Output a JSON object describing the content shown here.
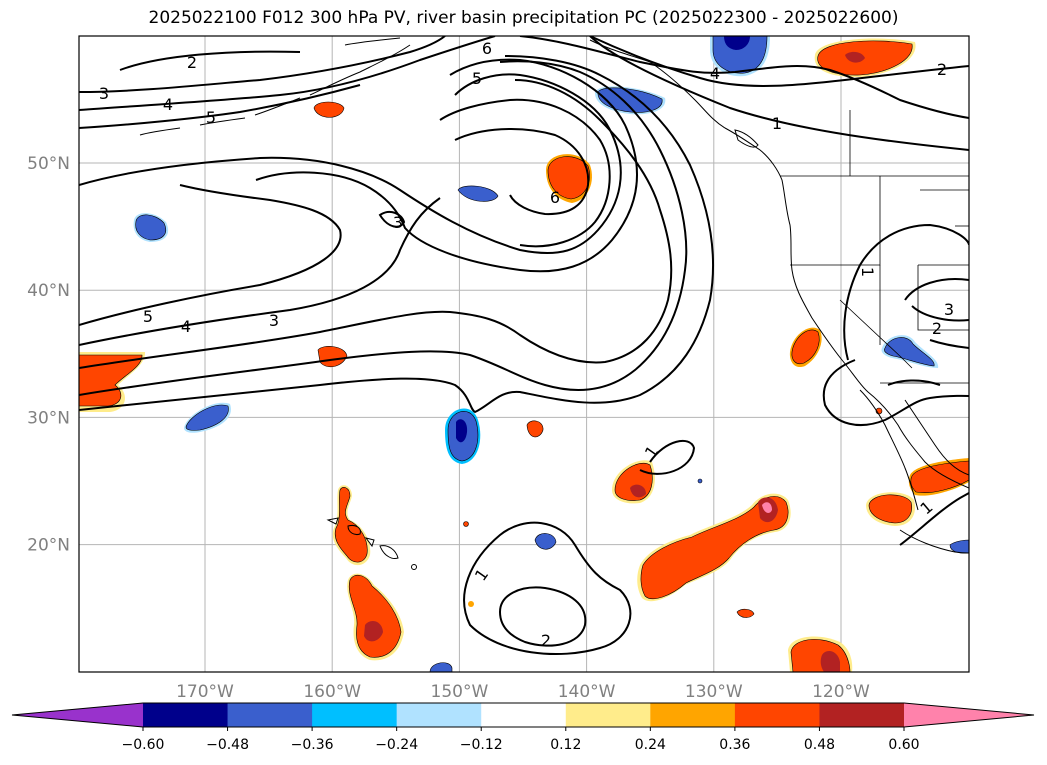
{
  "title": "2025022100 F012 300 hPa PV, river basin precipitation PC (2025022300 - 2025022600)",
  "map": {
    "lat_ticks": [
      {
        "label": "50°N",
        "lat": 50
      },
      {
        "label": "40°N",
        "lat": 40
      },
      {
        "label": "30°N",
        "lat": 30
      },
      {
        "label": "20°N",
        "lat": 20
      }
    ],
    "lon_ticks": [
      {
        "label": "170°W",
        "lon": -170
      },
      {
        "label": "160°W",
        "lon": -160
      },
      {
        "label": "150°W",
        "lon": -150
      },
      {
        "label": "140°W",
        "lon": -140
      },
      {
        "label": "130°W",
        "lon": -130
      },
      {
        "label": "120°W",
        "lon": -120
      }
    ],
    "contour_labels": [
      "1",
      "2",
      "3",
      "4",
      "5",
      "6"
    ],
    "grid": true
  },
  "colorbar": {
    "tick_labels": [
      "−0.60",
      "−0.48",
      "−0.36",
      "−0.24",
      "−0.12",
      "0.12",
      "0.24",
      "0.36",
      "0.48",
      "0.60"
    ],
    "colors": [
      "#9932cc",
      "#00008b",
      "#3a5fcd",
      "#00bfff",
      "#b0e2ff",
      "#ffffff",
      "#ffec8b",
      "#ffa500",
      "#ff4500",
      "#b22222",
      "#ff82ab"
    ]
  }
}
